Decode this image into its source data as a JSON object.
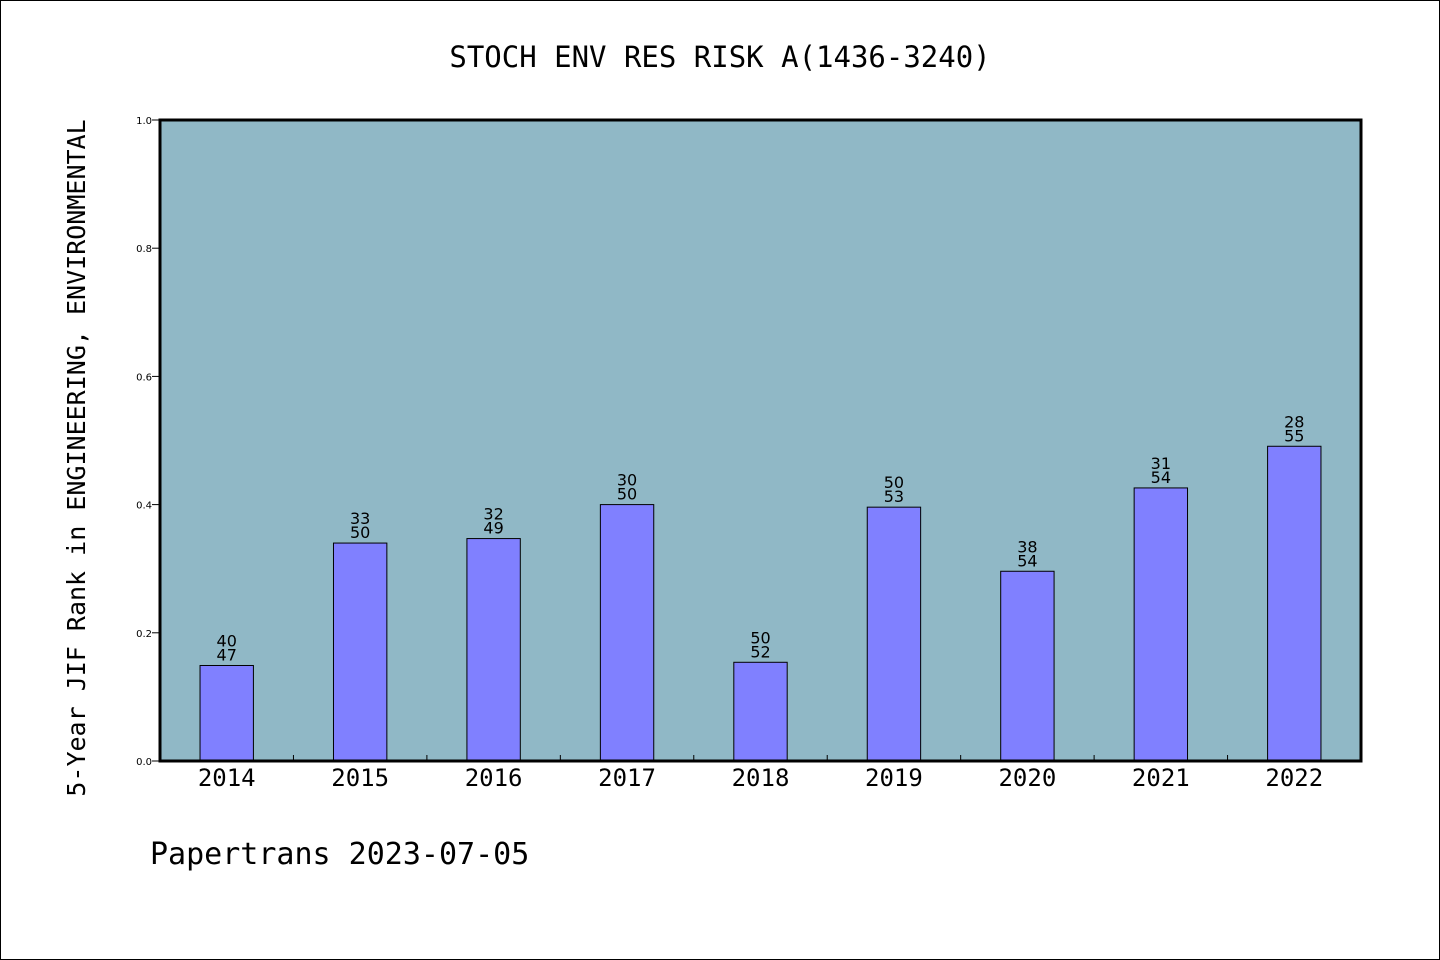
{
  "chart_data": {
    "type": "bar",
    "title": "STOCH ENV RES RISK A(1436-3240)",
    "ylabel": "5-Year JIF Rank in ENGINEERING, ENVIRONMENTAL",
    "xlabel": "",
    "categories": [
      "2014",
      "2015",
      "2016",
      "2017",
      "2018",
      "2019",
      "2020",
      "2021",
      "2022"
    ],
    "values": [
      0.149,
      0.34,
      0.347,
      0.4,
      0.154,
      0.396,
      0.296,
      0.426,
      0.491
    ],
    "rank": [
      "40",
      "33",
      "32",
      "30",
      "50",
      "50",
      "38",
      "31",
      "28"
    ],
    "total": [
      "47",
      "50",
      "49",
      "50",
      "52",
      "53",
      "54",
      "54",
      "55"
    ],
    "ylim": [
      0,
      1.0
    ],
    "yticks": [
      "0.0",
      "0.2",
      "0.4",
      "0.6",
      "0.8",
      "1.0"
    ],
    "grid": false,
    "legend": "none",
    "colors": {
      "plot_background": "#90b8c6",
      "bar_fill": "#8080ff",
      "bar_edge": "#000000",
      "axis": "#000000"
    }
  },
  "footer": {
    "text": "Papertrans 2023-07-05"
  }
}
